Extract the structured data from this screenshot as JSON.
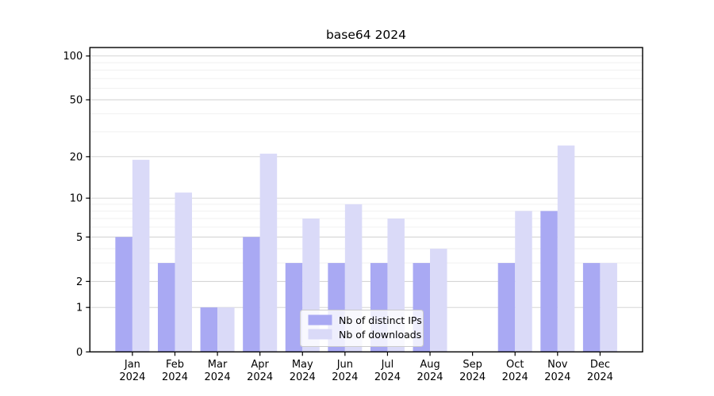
{
  "title": "base64 2024",
  "chart_data": {
    "type": "bar",
    "title": "base64 2024",
    "categories": [
      "Jan",
      "Feb",
      "Mar",
      "Apr",
      "May",
      "Jun",
      "Jul",
      "Aug",
      "Sep",
      "Oct",
      "Nov",
      "Dec"
    ],
    "x_year": "2024",
    "series": [
      {
        "name": "Nb of distinct IPs",
        "color": "#a9a9f3",
        "values": [
          5,
          3,
          1,
          5,
          3,
          3,
          3,
          3,
          0,
          3,
          8,
          3
        ]
      },
      {
        "name": "Nb of downloads",
        "color": "#dadaf8",
        "values": [
          19,
          11,
          1,
          21,
          7,
          9,
          7,
          4,
          0,
          8,
          24,
          3
        ]
      }
    ],
    "y_scale": "log1p",
    "y_major_ticks": [
      0,
      1,
      2,
      5,
      10,
      20,
      50,
      100
    ],
    "y_minor_gridlines": [
      3,
      4,
      6,
      7,
      8,
      9,
      30,
      40,
      60,
      70,
      80,
      90
    ],
    "ylim": [
      0,
      114
    ],
    "xlabel": "",
    "ylabel": "",
    "grid": true,
    "legend_position": "lower center"
  },
  "colors": {
    "axis": "#000000",
    "grid_major": "#cfcfcf",
    "grid_minor": "#efefef",
    "legend_border": "#cccccc",
    "legend_bg": "#ffffff",
    "text": "#000000"
  }
}
